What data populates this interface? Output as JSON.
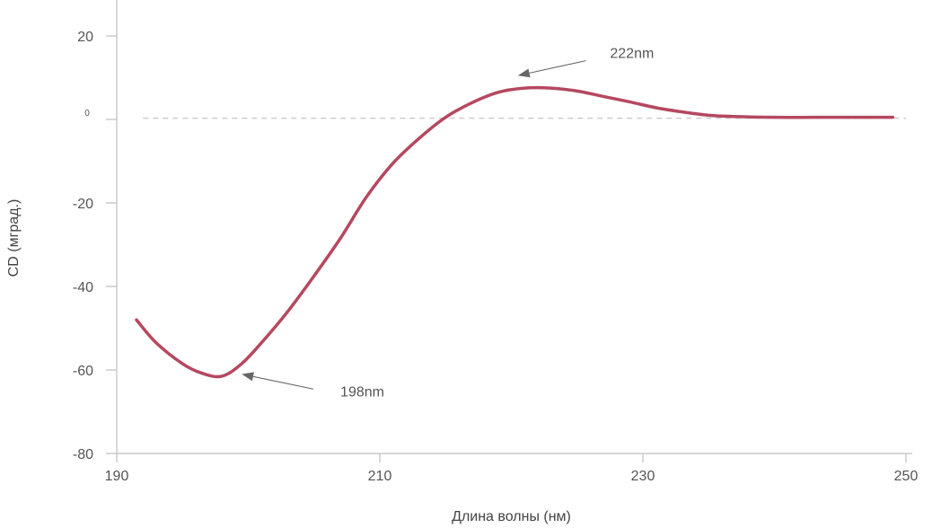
{
  "chart_data": {
    "type": "line",
    "xlabel": "Длина волны (нм)",
    "ylabel": "CD (мград.)",
    "xlim": [
      190,
      250
    ],
    "ylim": [
      -80,
      30
    ],
    "x_ticks": [
      190,
      210,
      230,
      250
    ],
    "y_ticks": [
      20,
      0,
      -20,
      -40,
      -60,
      -80
    ],
    "y_tick_labels": [
      "20",
      "0",
      "-20",
      "-40",
      "-60",
      "-80"
    ],
    "series": [
      {
        "color": "#b5485f",
        "x": [
          191.5,
          193,
          195,
          196.5,
          198,
          199.5,
          201,
          203,
          205,
          207,
          209,
          211,
          213,
          215,
          217,
          219,
          221,
          223,
          225,
          227,
          229,
          231,
          233,
          235,
          237,
          240,
          243,
          246,
          249
        ],
        "y": [
          -48,
          -53.5,
          -58.5,
          -60.8,
          -61.5,
          -58.5,
          -53.5,
          -46,
          -37.5,
          -28.5,
          -18.5,
          -10.5,
          -4.5,
          0.5,
          4,
          6.5,
          7.5,
          7.5,
          6.8,
          5.5,
          4.2,
          2.8,
          1.8,
          1,
          0.7,
          0.5,
          0.5,
          0.5,
          0.5
        ]
      }
    ],
    "baseline": {
      "y": 0.3,
      "color": "#cccccc",
      "x_range": [
        192,
        250
      ]
    },
    "annotations": [
      {
        "text": "222nm",
        "target": [
          220.5,
          10.5
        ],
        "text_pos": [
          227.5,
          16
        ]
      },
      {
        "text": "198nm",
        "target": [
          199.5,
          -61
        ],
        "text_pos": [
          207,
          -65
        ]
      }
    ],
    "grid": false
  }
}
